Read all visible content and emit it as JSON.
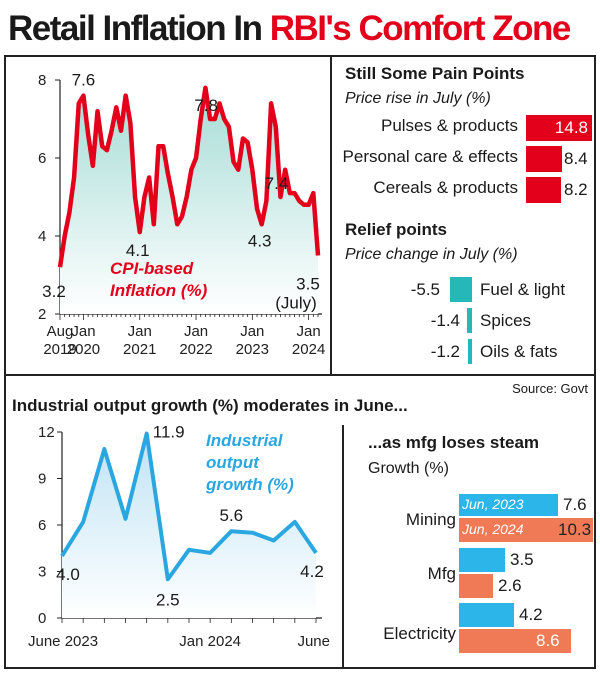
{
  "title": {
    "part1": "Retail Inflation In ",
    "part2": "RBI's Comfort Zone"
  },
  "source": "Source: Govt",
  "chart_data": [
    {
      "type": "area",
      "label_line1": "CPI-based",
      "label_line2": "Inflation (%)",
      "ylim": [
        2,
        8
      ],
      "yticks": [
        "2",
        "4",
        "6",
        "8"
      ],
      "xtick_labels": [
        {
          "top": "Aug",
          "bottom": "2019"
        },
        {
          "top": "Jan",
          "bottom": "2020"
        },
        {
          "top": "Jan",
          "bottom": "2021"
        },
        {
          "top": "Jan",
          "bottom": "2022"
        },
        {
          "top": "Jan",
          "bottom": "2023"
        },
        {
          "top": "Jan",
          "bottom": "2024"
        }
      ],
      "start_month": "Aug 2019",
      "values": [
        3.2,
        4.0,
        4.6,
        5.5,
        7.4,
        7.6,
        6.6,
        5.8,
        7.2,
        6.3,
        6.2,
        6.7,
        7.3,
        6.7,
        7.6,
        6.9,
        5.0,
        4.1,
        5.0,
        5.5,
        4.3,
        6.3,
        6.3,
        5.6,
        5.0,
        4.3,
        4.5,
        5.0,
        5.7,
        6.0,
        7.0,
        7.8,
        7.0,
        7.0,
        7.4,
        7.0,
        6.8,
        5.9,
        5.7,
        6.5,
        6.4,
        5.7,
        4.7,
        4.3,
        4.9,
        7.4,
        6.8,
        5.0,
        5.7,
        5.1,
        5.1,
        4.9,
        4.8,
        4.8,
        5.1,
        3.5
      ],
      "annotations": [
        {
          "text": "3.2",
          "at": "Aug 2019"
        },
        {
          "text": "7.6",
          "at": "Jan 2020"
        },
        {
          "text": "4.1",
          "at": "Jan 2021"
        },
        {
          "text": "7.8",
          "at": "Apr 2022"
        },
        {
          "text": "4.3",
          "at": "Mar 2023"
        },
        {
          "text": "7.4",
          "at": "Jul 2023"
        },
        {
          "text": "3.5",
          "at": "Jul 2024"
        },
        {
          "text": "(July)",
          "at": "Jul 2024"
        }
      ],
      "line_color": "#e3001b",
      "fill_color": "#a6dcd6"
    },
    {
      "type": "bar",
      "title": "Still Some Pain Points",
      "subtitle": "Price rise in July (%)",
      "categories": [
        "Pulses & products",
        "Personal care & effects",
        "Cereals & products"
      ],
      "values": [
        14.8,
        8.4,
        8.2
      ],
      "value_labels": [
        "14.8",
        "8.4",
        "8.2"
      ],
      "color": "#e3001b"
    },
    {
      "type": "bar",
      "title": "Relief points",
      "subtitle": "Price change in July (%)",
      "categories": [
        "Fuel & light",
        "Spices",
        "Oils & fats"
      ],
      "values": [
        -5.5,
        -1.4,
        -1.2
      ],
      "value_labels": [
        "-5.5",
        "-1.4",
        "-1.2"
      ],
      "color": "#26b8b8"
    },
    {
      "type": "area",
      "title": "Industrial output growth (%) moderates in June...",
      "label_line1": "Industrial",
      "label_line2": "output",
      "label_line3": "growth (%)",
      "ylim": [
        0,
        12
      ],
      "yticks": [
        "0",
        "3",
        "6",
        "9",
        "12"
      ],
      "xtick_labels": [
        "June 2023",
        "Jan 2024",
        "June"
      ],
      "x": [
        "Jun 2023",
        "Jul 2023",
        "Aug 2023",
        "Sep 2023",
        "Oct 2023",
        "Nov 2023",
        "Dec 2023",
        "Jan 2024",
        "Feb 2024",
        "Mar 2024",
        "Apr 2024",
        "May 2024",
        "Jun 2024"
      ],
      "values": [
        4.0,
        6.2,
        10.9,
        6.4,
        11.9,
        2.5,
        4.4,
        4.2,
        5.6,
        5.5,
        5.0,
        6.2,
        4.2
      ],
      "annotations": [
        {
          "text": "4.0",
          "at": "Jun 2023"
        },
        {
          "text": "11.9",
          "at": "Oct 2023"
        },
        {
          "text": "2.5",
          "at": "Nov 2023"
        },
        {
          "text": "5.6",
          "at": "Feb 2024"
        },
        {
          "text": "4.2",
          "at": "Jun 2024"
        }
      ],
      "line_color": "#2aa7e0",
      "fill_color": "#d6edf8"
    },
    {
      "type": "bar",
      "title": "...as mfg loses steam",
      "subtitle": "Growth (%)",
      "categories": [
        "Mining",
        "Mfg",
        "Electricity"
      ],
      "series": [
        {
          "name": "Jun, 2023",
          "values": [
            7.6,
            3.5,
            4.2
          ],
          "labels": [
            "7.6",
            "3.5",
            "4.2"
          ],
          "color": "#2bb5e8"
        },
        {
          "name": "Jun, 2024",
          "values": [
            10.3,
            2.6,
            8.6
          ],
          "labels": [
            "10.3",
            "2.6",
            "8.6"
          ],
          "color": "#f07a55"
        }
      ]
    }
  ]
}
